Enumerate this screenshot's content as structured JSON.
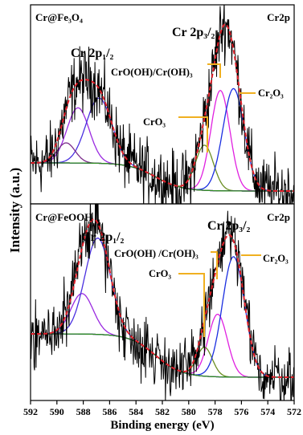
{
  "chart_data": [
    {
      "type": "line",
      "panel": "top",
      "sample_label": "Cr@Fe₃O₄",
      "region_label": "Cr2p",
      "peak_labels": [
        "Cr 2p₁/₂",
        "Cr 2p₃/₂"
      ],
      "component_labels": [
        "CrO(OH)/Cr(OH)₃",
        "CrO₃",
        "Cr₂O₃"
      ],
      "xlim": [
        592,
        572
      ],
      "series": [
        {
          "name": "CrO(OH)/Cr(OH)₃",
          "color": "#e020e0",
          "center": 577.6,
          "height": 1.0,
          "fwhm": 1.7
        },
        {
          "name": "CrO₃",
          "color": "#6b8e23",
          "center": 578.8,
          "height": 0.45,
          "fwhm": 1.6
        },
        {
          "name": "Cr₂O₃",
          "color": "#1a2ee0",
          "center": 576.6,
          "height": 1.02,
          "fwhm": 1.9
        },
        {
          "name": "Cr 2p₁/₂ CrO(OH)",
          "color": "#9a2ae0",
          "center": 588.4,
          "height": 0.55,
          "fwhm": 2.0
        },
        {
          "name": "Cr 2p₁/₂ Cr₂O₃",
          "color": "#4a30e0",
          "center": 586.8,
          "height": 0.65,
          "fwhm": 2.3
        },
        {
          "name": "Cr 2p₁/₂ CrO₃",
          "color": "#7a2a8a",
          "center": 589.3,
          "height": 0.2,
          "fwhm": 1.6
        }
      ]
    },
    {
      "type": "line",
      "panel": "bottom",
      "sample_label": "Cr@FeOOH",
      "region_label": "Cr2p",
      "peak_labels": [
        "Cr 2p₁/₂",
        "Cr 2p₃/₂"
      ],
      "component_labels": [
        "CrO(OH) /Cr(OH)₃",
        "CrO₃",
        "Cr₂O₃"
      ],
      "xlim": [
        592,
        572
      ],
      "series": [
        {
          "name": "CrO(OH) /Cr(OH)₃",
          "color": "#e020e0",
          "center": 577.8,
          "height": 0.65,
          "fwhm": 1.7
        },
        {
          "name": "CrO₃",
          "color": "#6b8e23",
          "center": 578.8,
          "height": 0.3,
          "fwhm": 1.4
        },
        {
          "name": "Cr₂O₃",
          "color": "#1a2ee0",
          "center": 576.6,
          "height": 1.25,
          "fwhm": 2.0
        },
        {
          "name": "Cr 2p₁/₂ CrO(OH)",
          "color": "#9a2ae0",
          "center": 588.1,
          "height": 0.42,
          "fwhm": 2.0
        },
        {
          "name": "Cr 2p₁/₂ Cr₂O₃",
          "color": "#4a30e0",
          "center": 586.9,
          "height": 1.0,
          "fwhm": 2.3
        }
      ]
    }
  ],
  "axes": {
    "xlabel": "Binding energy (eV)",
    "ylabel": "Intensity (a.u.)",
    "xticks": [
      "592",
      "590",
      "588",
      "586",
      "584",
      "582",
      "580",
      "578",
      "576",
      "574",
      "572"
    ]
  },
  "colors": {
    "raw": "#000000",
    "envelope": "#e0202a",
    "background": "#2e8b22",
    "leader": "#f0b020"
  }
}
